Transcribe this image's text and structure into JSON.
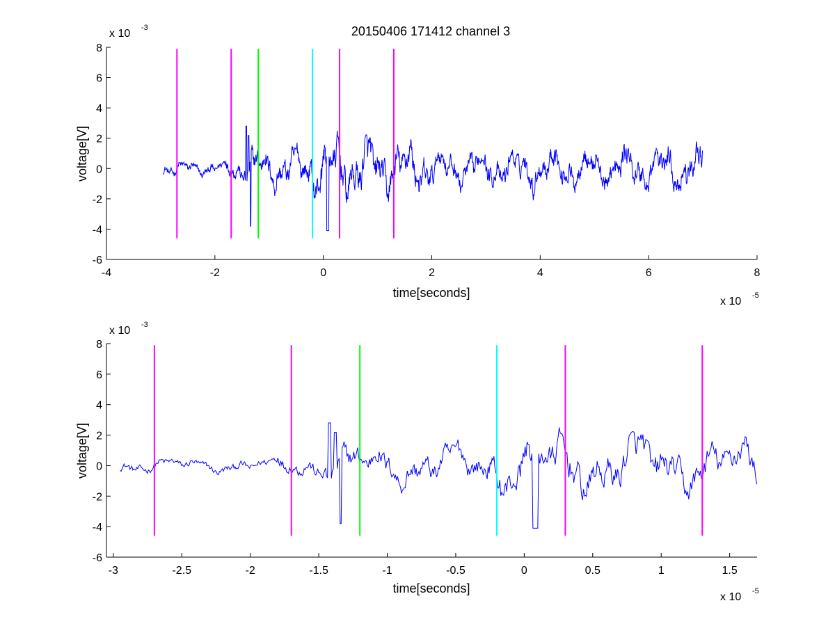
{
  "chart_data": [
    {
      "type": "line",
      "title": "20150406 171412 channel 3",
      "xlabel": "time[seconds]",
      "ylabel": "voltage[V]",
      "x_multiplier": "x 10",
      "x_exponent": "-5",
      "y_multiplier": "x 10",
      "y_exponent": "-3",
      "xlim": [
        -4,
        8
      ],
      "ylim": [
        -6,
        8
      ],
      "xticks": [
        -4,
        -2,
        0,
        2,
        4,
        6,
        8
      ],
      "xtick_labels": [
        "-4",
        "-2",
        "0",
        "2",
        "4",
        "6",
        "8"
      ],
      "yticks": [
        -6,
        -4,
        -2,
        0,
        2,
        4,
        6,
        8
      ],
      "ytick_labels": [
        "-6",
        "-4",
        "-2",
        "0",
        "2",
        "4",
        "6",
        "8"
      ],
      "grid": false,
      "signal_range": [
        -2.95,
        7.0
      ],
      "series": [
        {
          "color": "#0000ff"
        }
      ],
      "markers": [
        {
          "x": -2.7,
          "y0": -4.6,
          "y1": 7.9,
          "color": "#ff00ff"
        },
        {
          "x": -1.7,
          "y0": -4.6,
          "y1": 7.9,
          "color": "#ff00ff"
        },
        {
          "x": -1.2,
          "y0": -4.6,
          "y1": 7.9,
          "color": "#00ff00"
        },
        {
          "x": -0.2,
          "y0": -4.6,
          "y1": 7.9,
          "color": "#00ffff"
        },
        {
          "x": 0.3,
          "y0": -4.6,
          "y1": 7.9,
          "color": "#ff00ff"
        },
        {
          "x": 1.3,
          "y0": -4.6,
          "y1": 7.9,
          "color": "#ff00ff"
        }
      ]
    },
    {
      "type": "line",
      "title": "",
      "xlabel": "time[seconds]",
      "ylabel": "voltage[V]",
      "x_multiplier": "x 10",
      "x_exponent": "-5",
      "y_multiplier": "x 10",
      "y_exponent": "-3",
      "xlim": [
        -3.05,
        1.7
      ],
      "ylim": [
        -6,
        8
      ],
      "xticks": [
        -3,
        -2.5,
        -2,
        -1.5,
        -1,
        -0.5,
        0,
        0.5,
        1,
        1.5
      ],
      "xtick_labels": [
        "-3",
        "-2.5",
        "-2",
        "-1.5",
        "-1",
        "-0.5",
        "0",
        "0.5",
        "1",
        "1.5"
      ],
      "yticks": [
        -6,
        -4,
        -2,
        0,
        2,
        4,
        6,
        8
      ],
      "ytick_labels": [
        "-6",
        "-4",
        "-2",
        "0",
        "2",
        "4",
        "6",
        "8"
      ],
      "grid": false,
      "signal_range": [
        -2.95,
        1.7
      ],
      "series": [
        {
          "color": "#0000ff"
        }
      ],
      "markers": [
        {
          "x": -2.7,
          "y0": -4.6,
          "y1": 7.9,
          "color": "#ff00ff"
        },
        {
          "x": -1.7,
          "y0": -4.6,
          "y1": 7.9,
          "color": "#ff00ff"
        },
        {
          "x": -1.2,
          "y0": -4.6,
          "y1": 7.9,
          "color": "#00ff00"
        },
        {
          "x": -0.2,
          "y0": -4.6,
          "y1": 7.9,
          "color": "#00ffff"
        },
        {
          "x": 0.3,
          "y0": -4.6,
          "y1": 7.9,
          "color": "#ff00ff"
        },
        {
          "x": 1.3,
          "y0": -4.6,
          "y1": 7.9,
          "color": "#ff00ff"
        }
      ]
    }
  ]
}
